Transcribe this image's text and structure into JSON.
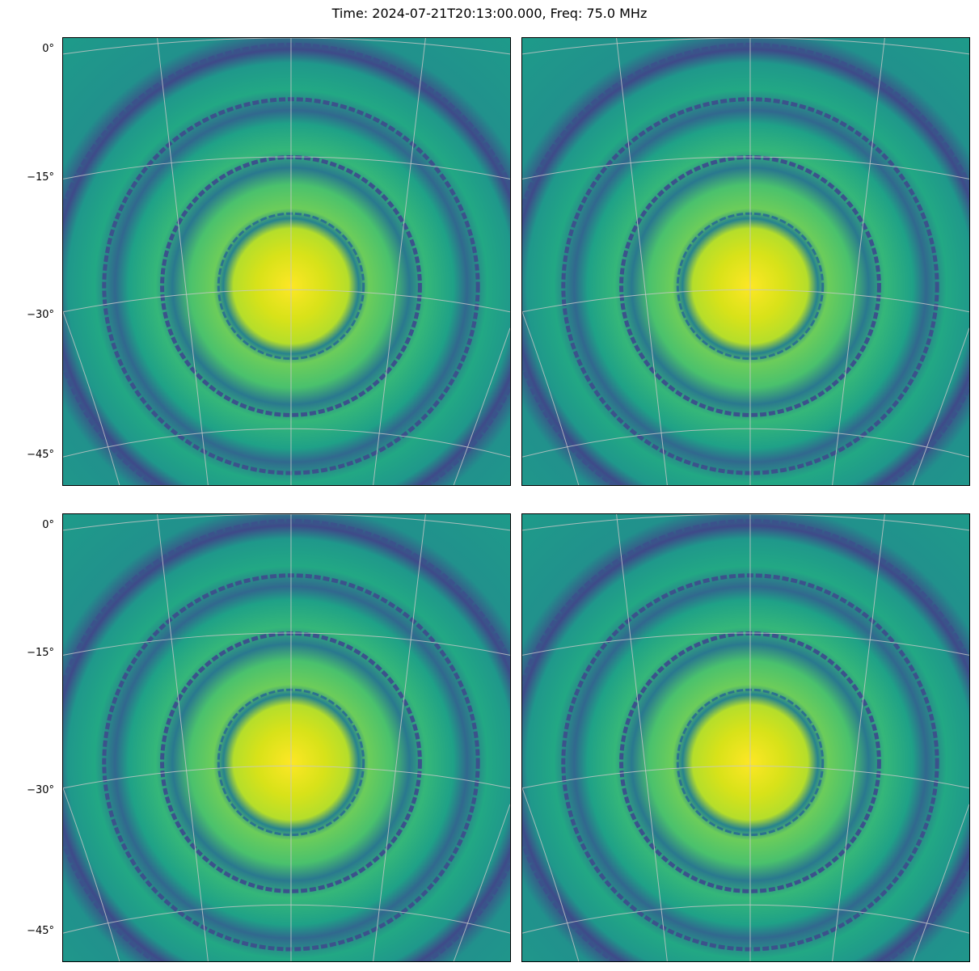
{
  "figure": {
    "title": "Time: 2024-07-21T20:13:00.000, Freq: 75.0 MHz"
  },
  "chart_data": {
    "type": "heatmap",
    "title": "Time: 2024-07-21T20:13:00.000, Freq: 75.0 MHz",
    "colormap": "viridis",
    "grid": true,
    "grid_color": "#c8c8c8",
    "panels": [
      {
        "id": "top-left",
        "ylabel_ticks": [
          "0°",
          "-15°",
          "-30°",
          "-45°"
        ],
        "ylabel_values": [
          0,
          -15,
          -30,
          -45
        ]
      },
      {
        "id": "top-right",
        "ylabel_ticks": [],
        "ylabel_values": []
      },
      {
        "id": "bottom-left",
        "ylabel_ticks": [
          "0°",
          "-15°",
          "-30°",
          "-45°"
        ],
        "ylabel_values": [
          0,
          -15,
          -30,
          -45
        ]
      },
      {
        "id": "bottom-right",
        "ylabel_ticks": [],
        "ylabel_values": []
      }
    ],
    "beam": {
      "main_lobe": "bright yellow disk centered near Dec -28°",
      "null_rings": 4,
      "sidelobe_rings": 4
    }
  },
  "ticks": {
    "t0": "0°",
    "t15": "−15°",
    "t30": "−30°",
    "t45": "−45°"
  }
}
